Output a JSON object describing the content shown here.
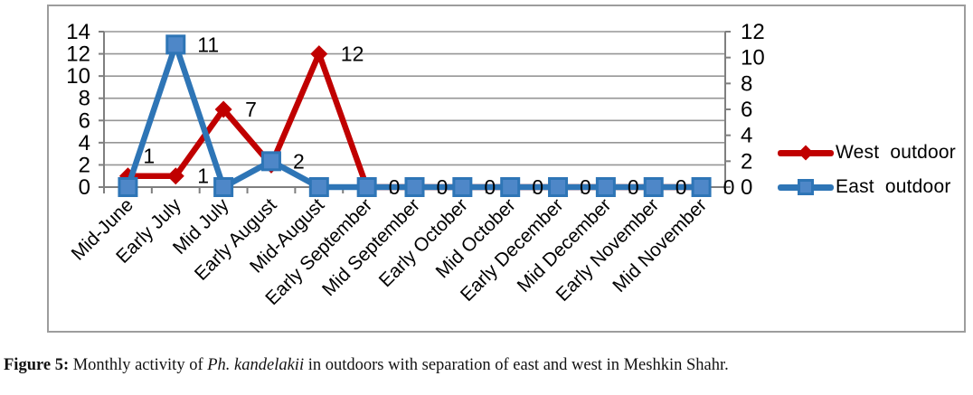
{
  "figure": {
    "caption_label": "Figure 5:",
    "caption_before_species": " Monthly activity of ",
    "caption_species": "Ph. kandelakii",
    "caption_after_species": " in outdoors with separation of east and west in Meshkin Shahr."
  },
  "chart_data": {
    "type": "line",
    "categories": [
      "Mid-June",
      "Early July",
      "Mid July",
      "Early August",
      "Mid-August",
      "Early September",
      "Mid September",
      "Early October",
      "Mid October",
      "Early December",
      "Mid December",
      "Early November",
      "Mid November"
    ],
    "series": [
      {
        "name": "West  outdoor",
        "axis": "left",
        "color": "#C00000",
        "marker": "diamond",
        "marker_fill": "#C00000",
        "values": [
          1,
          1,
          7,
          2,
          12,
          0,
          0,
          0,
          0,
          0,
          0,
          0,
          0
        ]
      },
      {
        "name": "East  outdoor",
        "axis": "right",
        "color": "#2E75B6",
        "marker": "square",
        "marker_fill": "#4E87C8",
        "values": [
          0,
          11,
          0,
          2,
          0,
          0,
          0,
          0,
          0,
          0,
          0,
          0,
          0
        ]
      }
    ],
    "left_axis": {
      "min": 0,
      "max": 14,
      "ticks": [
        0,
        2,
        4,
        6,
        8,
        10,
        12,
        14
      ]
    },
    "right_axis": {
      "min": 0,
      "max": 12,
      "ticks": [
        0,
        2,
        4,
        6,
        8,
        10,
        12
      ]
    },
    "grid": true,
    "legend_position": "right",
    "point_labels": [
      {
        "ci": 0,
        "series": 0,
        "text": "1",
        "pos": "above-right"
      },
      {
        "ci": 1,
        "series": 1,
        "text": "11",
        "pos": "right"
      },
      {
        "ci": 1,
        "series": 0,
        "text": "1",
        "pos": "right"
      },
      {
        "ci": 2,
        "series": 0,
        "text": "7",
        "pos": "right"
      },
      {
        "ci": 3,
        "series": 1,
        "text": "2",
        "pos": "right"
      },
      {
        "ci": 4,
        "series": 0,
        "text": "12",
        "pos": "right"
      },
      {
        "ci": 5,
        "series": 1,
        "text": "0",
        "pos": "right"
      },
      {
        "ci": 6,
        "series": 1,
        "text": "0",
        "pos": "right"
      },
      {
        "ci": 7,
        "series": 1,
        "text": "0",
        "pos": "right"
      },
      {
        "ci": 8,
        "series": 1,
        "text": "0",
        "pos": "right"
      },
      {
        "ci": 9,
        "series": 1,
        "text": "0",
        "pos": "right"
      },
      {
        "ci": 10,
        "series": 1,
        "text": "0",
        "pos": "right"
      },
      {
        "ci": 11,
        "series": 1,
        "text": "0",
        "pos": "right"
      },
      {
        "ci": 12,
        "series": 1,
        "text": "0",
        "pos": "right"
      }
    ],
    "colors": {
      "west": "#C00000",
      "east": "#2E75B6",
      "east_fill": "#4E87C8",
      "grid": "#969696",
      "axis": "#7F7F7F"
    }
  }
}
